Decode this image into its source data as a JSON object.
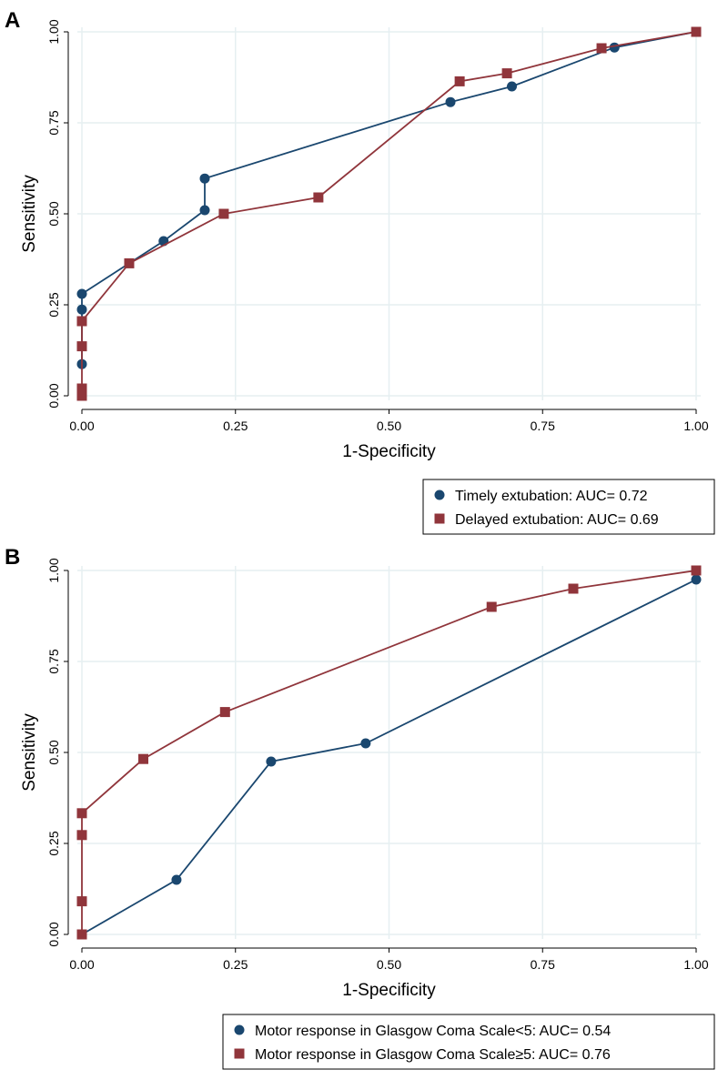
{
  "colors": {
    "blue": "#1a476f",
    "red": "#90353b",
    "grid": "#e6eff1"
  },
  "chart_data": [
    {
      "type": "line",
      "panel": "A",
      "xlabel": "1-Specificity",
      "ylabel": "Sensitivity",
      "xlim": [
        0,
        1
      ],
      "ylim": [
        0,
        1
      ],
      "ticks": [
        "0.00",
        "0.25",
        "0.50",
        "0.75",
        "1.00"
      ],
      "tick_values": [
        0,
        0.25,
        0.5,
        0.75,
        1
      ],
      "grid": true,
      "legend_position": "bottom-right",
      "series": [
        {
          "name": "Timely   extubation: AUC= 0.72",
          "marker": "circle",
          "color": "#1a476f",
          "x": [
            0,
            0,
            0,
            0.133,
            0.2,
            0.2,
            0.6,
            0.7,
            0.867,
            1
          ],
          "y": [
            0.087,
            0.237,
            0.28,
            0.425,
            0.51,
            0.597,
            0.807,
            0.85,
            0.957,
            1
          ]
        },
        {
          "name": "Delayed extubation: AUC= 0.69",
          "marker": "square",
          "color": "#90353b",
          "x": [
            0,
            0,
            0,
            0,
            0.077,
            0.231,
            0.385,
            0.615,
            0.692,
            0.846,
            1
          ],
          "y": [
            0,
            0.02,
            0.136,
            0.205,
            0.364,
            0.5,
            0.545,
            0.864,
            0.886,
            0.955,
            1
          ]
        }
      ]
    },
    {
      "type": "line",
      "panel": "B",
      "xlabel": "1-Specificity",
      "ylabel": "Sensitivity",
      "xlim": [
        0,
        1
      ],
      "ylim": [
        0,
        1
      ],
      "ticks": [
        "0.00",
        "0.25",
        "0.50",
        "0.75",
        "1.00"
      ],
      "tick_values": [
        0,
        0.25,
        0.5,
        0.75,
        1
      ],
      "grid": true,
      "legend_position": "bottom-right",
      "series": [
        {
          "name": "Motor response in Glasgow Coma Scale<5: AUC= 0.54",
          "marker": "circle",
          "color": "#1a476f",
          "x": [
            0,
            0.154,
            0.308,
            0.462,
            1
          ],
          "y": [
            0,
            0.15,
            0.475,
            0.525,
            0.975
          ]
        },
        {
          "name": "Motor response in Glasgow Coma Scale≥5: AUC= 0.76",
          "marker": "square",
          "color": "#90353b",
          "x": [
            0,
            0,
            0,
            0,
            0.1,
            0.233,
            0.667,
            0.8,
            1
          ],
          "y": [
            0,
            0.091,
            0.273,
            0.333,
            0.482,
            0.611,
            0.9,
            0.95,
            1
          ]
        }
      ]
    }
  ]
}
